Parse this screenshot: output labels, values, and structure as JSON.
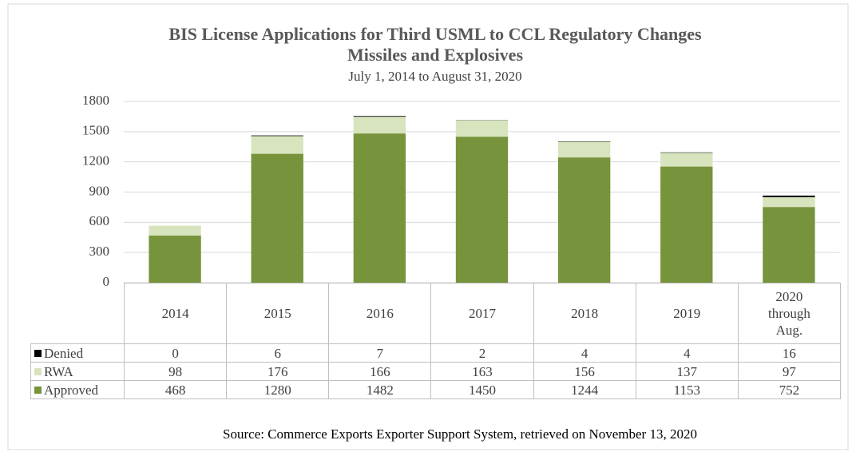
{
  "chart_data": {
    "type": "stacked_bar",
    "title": "BIS License Applications for Third USML to CCL Regulatory Changes",
    "title_line2": "Missiles and Explosives",
    "subtitle": "July 1, 2014 to August 31, 2020",
    "source": "Source: Commerce Exports Exporter Support System,  retrieved on November 13, 2020",
    "categories": [
      "2014",
      "2015",
      "2016",
      "2017",
      "2018",
      "2019",
      "2020 through Aug."
    ],
    "series": [
      {
        "name": "Denied",
        "color": "#000000",
        "values": [
          0,
          6,
          7,
          2,
          4,
          4,
          16
        ]
      },
      {
        "name": "RWA",
        "color": "#d7e4bd",
        "values": [
          98,
          176,
          166,
          163,
          156,
          137,
          97
        ]
      },
      {
        "name": "Approved",
        "color": "#77933c",
        "values": [
          468,
          1280,
          1482,
          1450,
          1244,
          1153,
          752
        ]
      }
    ],
    "ylim": [
      0,
      1800
    ],
    "yticks": [
      0,
      300,
      600,
      900,
      1200,
      1500,
      1800
    ],
    "grid": true
  }
}
